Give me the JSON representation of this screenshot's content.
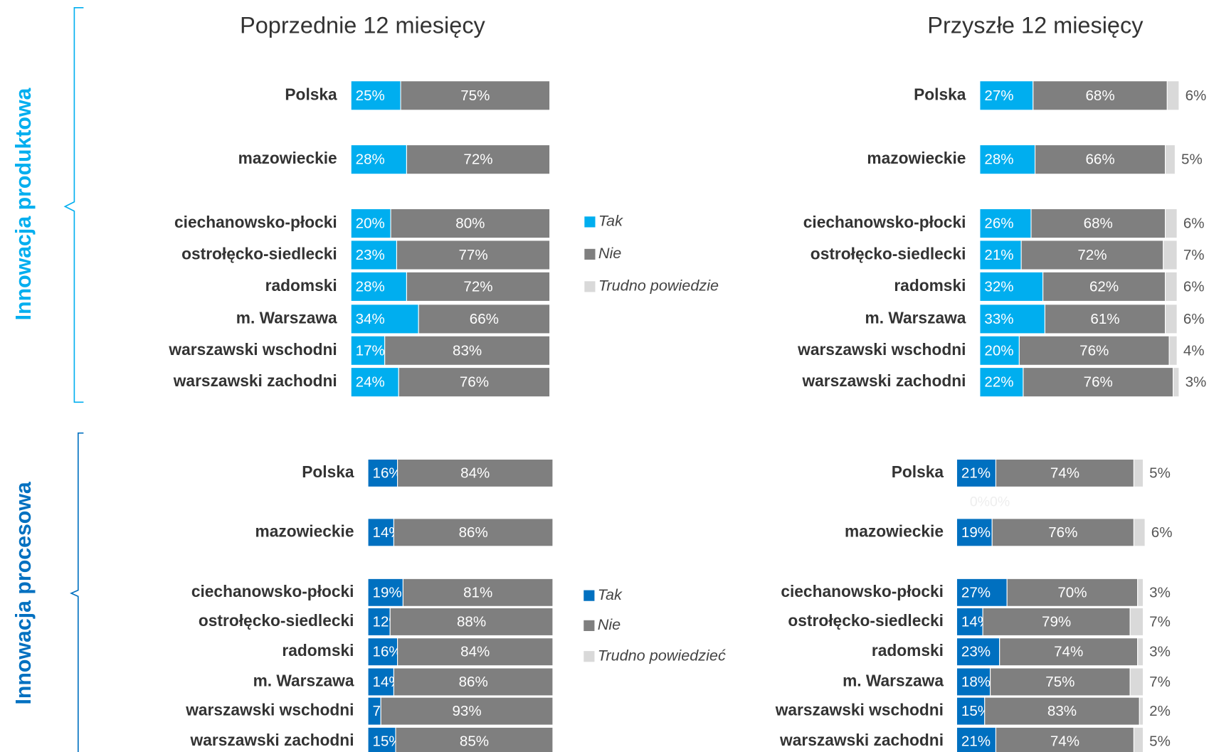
{
  "chart_data": [
    {
      "type": "bar",
      "orientation": "horizontal",
      "stacked": true,
      "section": "Innowacja produktowa",
      "title": "Poprzednie 12 miesięcy",
      "categories": [
        "Polska",
        "mazowieckie",
        "ciechanowsko-płocki",
        "ostrołęcko-siedlecki",
        "radomski",
        "m. Warszawa",
        "warszawski wschodni",
        "warszawski zachodni"
      ],
      "series": [
        {
          "color": "#00aeef",
          "values": [
            25,
            28,
            20,
            23,
            28,
            34,
            17,
            24
          ],
          "value_labels": [
            "25%",
            "28%",
            "20%",
            "23%",
            "28%",
            "34%",
            "17%",
            "24%"
          ]
        },
        {
          "color": "#7f7f7f",
          "values": [
            75,
            72,
            80,
            77,
            72,
            66,
            83,
            76
          ],
          "value_labels": [
            "75%",
            "72%",
            "80%",
            "77%",
            "72%",
            "66%",
            "83%",
            "76%"
          ]
        }
      ]
    },
    {
      "type": "bar",
      "orientation": "horizontal",
      "stacked": true,
      "title": "Przyszłe 12 miesięcy",
      "categories": [
        "Polska",
        "mazowieckie",
        "ciechanowsko-płocki",
        "ostrołęcko-siedlecki",
        "radomski",
        "m. Warszawa",
        "warszawski wschodni",
        "warszawski zachodni"
      ],
      "series": [
        {
          "name": "Tak",
          "color": "#00aeef",
          "values": [
            27,
            28,
            26,
            21,
            32,
            33,
            20,
            22
          ],
          "value_labels": [
            "27%",
            "28%",
            "26%",
            "21%",
            "32%",
            "33%",
            "20%",
            "22%"
          ]
        },
        {
          "name": "Nie",
          "color": "#7f7f7f",
          "values": [
            68,
            66,
            68,
            72,
            62,
            61,
            76,
            76
          ],
          "value_labels": [
            "68%",
            "66%",
            "68%",
            "72%",
            "62%",
            "61%",
            "76%",
            "76%"
          ]
        },
        {
          "name": "Trudno powiedzie",
          "color": "#d9d9d9",
          "values": [
            6,
            5,
            6,
            7,
            6,
            6,
            4,
            3
          ],
          "value_labels": [
            "6%",
            "5%",
            "6%",
            "7%",
            "6%",
            "6%",
            "4%",
            "3%"
          ]
        }
      ]
    },
    {
      "type": "bar",
      "orientation": "horizontal",
      "stacked": true,
      "section": "Innowacja procesowa",
      "categories": [
        "Polska",
        "mazowieckie",
        "ciechanowsko-płocki",
        "ostrołęcko-siedlecki",
        "radomski",
        "m. Warszawa",
        "warszawski wschodni",
        "warszawski zachodni"
      ],
      "series": [
        {
          "color": "#0070c0",
          "values": [
            16,
            14,
            19,
            12,
            16,
            14,
            7,
            15
          ],
          "value_labels": [
            "16%",
            "14%",
            "19%",
            "12%",
            "16%",
            "14%",
            "7%",
            "15%"
          ]
        },
        {
          "color": "#7f7f7f",
          "values": [
            84,
            86,
            81,
            88,
            84,
            86,
            93,
            85
          ],
          "value_labels": [
            "84%",
            "86%",
            "81%",
            "88%",
            "84%",
            "86%",
            "93%",
            "85%"
          ]
        }
      ]
    },
    {
      "type": "bar",
      "orientation": "horizontal",
      "stacked": true,
      "annotation": "0%0%",
      "categories": [
        "Polska",
        "mazowieckie",
        "ciechanowsko-płocki",
        "ostrołęcko-siedlecki",
        "radomski",
        "m. Warszawa",
        "warszawski wschodni",
        "warszawski zachodni"
      ],
      "series": [
        {
          "name": "Tak",
          "color": "#0070c0",
          "values": [
            21,
            19,
            27,
            14,
            23,
            18,
            15,
            21
          ],
          "value_labels": [
            "21%",
            "19%",
            "27%",
            "14%",
            "23%",
            "18%",
            "15%",
            "21%"
          ]
        },
        {
          "name": "Nie",
          "color": "#7f7f7f",
          "values": [
            74,
            76,
            70,
            79,
            74,
            75,
            83,
            74
          ],
          "value_labels": [
            "74%",
            "76%",
            "70%",
            "79%",
            "74%",
            "75%",
            "83%",
            "74%"
          ]
        },
        {
          "name": "Trudno powiedzieć",
          "color": "#d9d9d9",
          "values": [
            5,
            6,
            3,
            7,
            3,
            7,
            2,
            5
          ],
          "value_labels": [
            "5%",
            "6%",
            "3%",
            "7%",
            "3%",
            "7%",
            "2%",
            "5%"
          ]
        }
      ]
    }
  ]
}
